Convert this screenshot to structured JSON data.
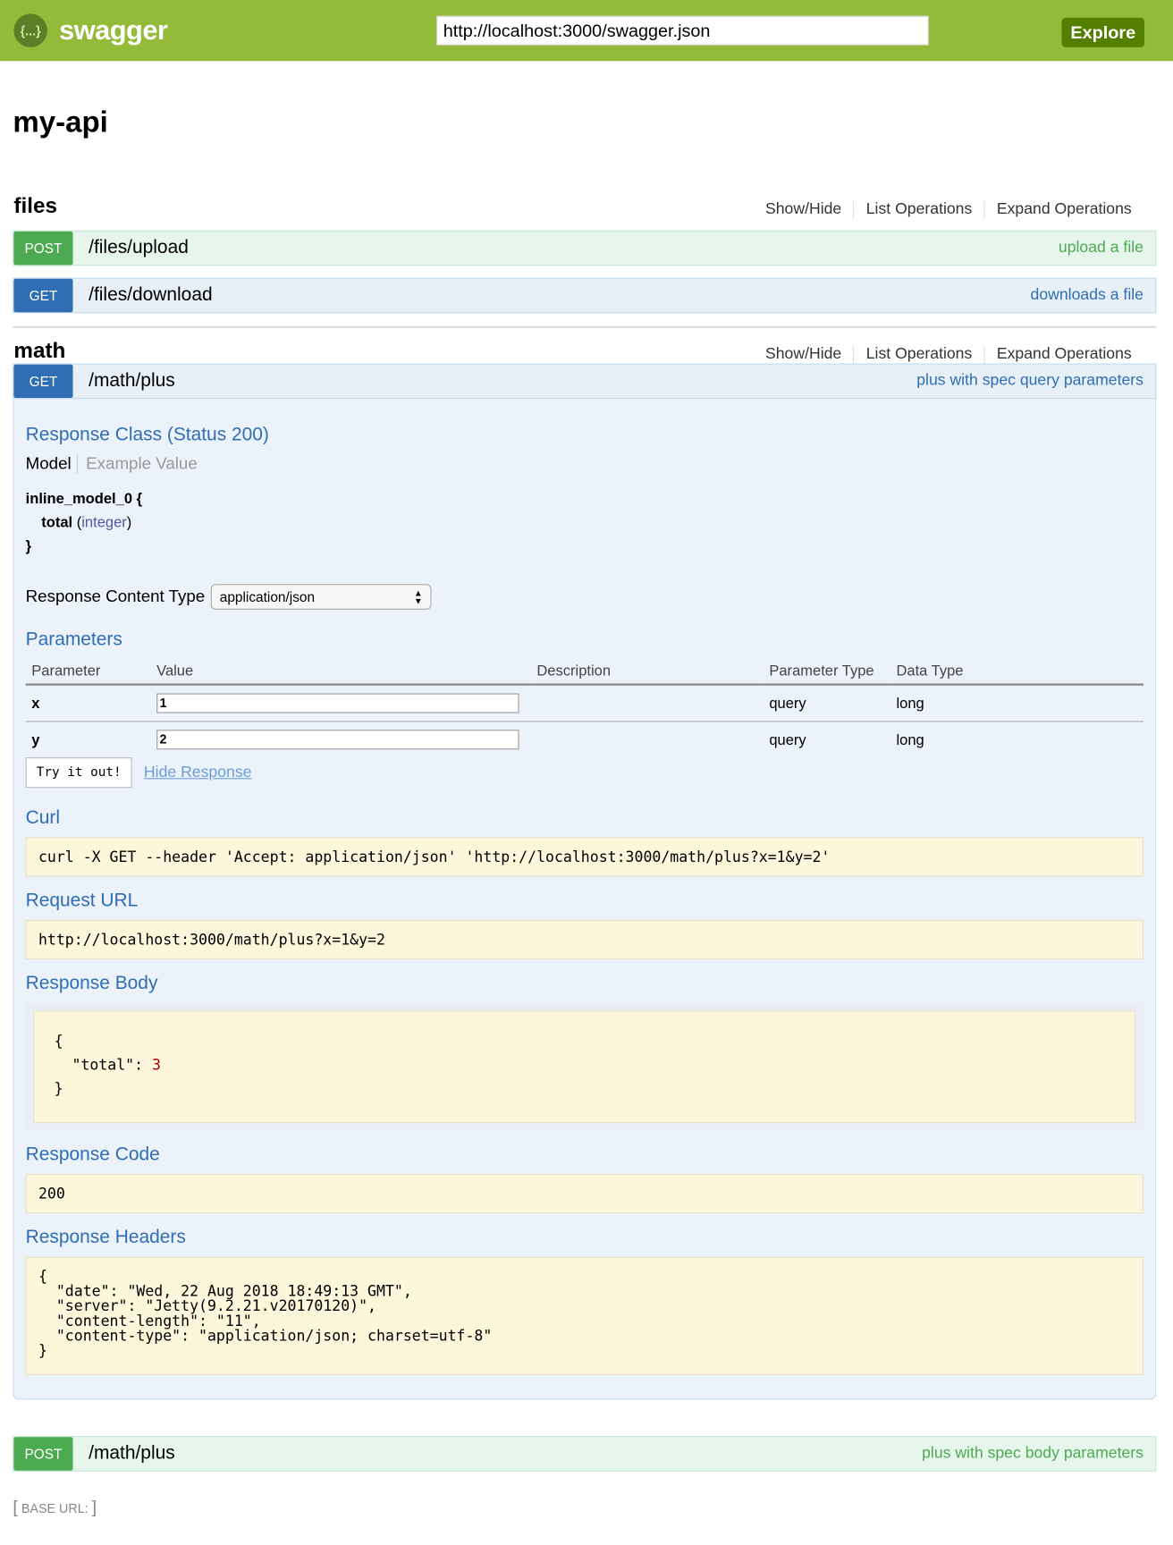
{
  "header": {
    "logo_text": "swagger",
    "logo_icon": "{...}",
    "url": "http://localhost:3000/swagger.json",
    "explore": "Explore"
  },
  "api_title": "my-api",
  "resources": [
    {
      "name": "files",
      "ops": [
        "Show/Hide",
        "List Operations",
        "Expand Operations"
      ],
      "operations": [
        {
          "method": "POST",
          "path": "/files/upload",
          "summary": "upload a file"
        },
        {
          "method": "GET",
          "path": "/files/download",
          "summary": "downloads a file"
        }
      ]
    },
    {
      "name": "math",
      "ops": [
        "Show/Hide",
        "List Operations",
        "Expand Operations"
      ],
      "operations": [
        {
          "method": "GET",
          "path": "/math/plus",
          "summary": "plus with spec query parameters"
        },
        {
          "method": "POST",
          "path": "/math/plus",
          "summary": "plus with spec body parameters"
        }
      ]
    }
  ],
  "expanded": {
    "response_class": "Response Class (Status 200)",
    "tabs": [
      "Model",
      "Example Value"
    ],
    "model": {
      "name": "inline_model_0 {",
      "prop": "total",
      "type": "integer",
      "close": "}"
    },
    "content_type_label": "Response Content Type",
    "content_type": "application/json",
    "parameters_title": "Parameters",
    "columns": [
      "Parameter",
      "Value",
      "Description",
      "Parameter Type",
      "Data Type"
    ],
    "params": [
      {
        "name": "x",
        "value": "1",
        "description": "",
        "ptype": "query",
        "dtype": "long"
      },
      {
        "name": "y",
        "value": "2",
        "description": "",
        "ptype": "query",
        "dtype": "long"
      }
    ],
    "try_button": "Try it out!",
    "hide_response": "Hide Response",
    "curl_title": "Curl",
    "curl": "curl -X GET --header 'Accept: application/json' 'http://localhost:3000/math/plus?x=1&y=2'",
    "request_url_title": "Request URL",
    "request_url": "http://localhost:3000/math/plus?x=1&y=2",
    "response_body_title": "Response Body",
    "response_body": {
      "open": "{",
      "key": "  \"total\": ",
      "value": "3",
      "close": "}"
    },
    "response_code_title": "Response Code",
    "response_code": "200",
    "response_headers_title": "Response Headers",
    "response_headers": "{\n  \"date\": \"Wed, 22 Aug 2018 18:49:13 GMT\",\n  \"server\": \"Jetty(9.2.21.v20170120)\",\n  \"content-length\": \"11\",\n  \"content-type\": \"application/json; charset=utf-8\"\n}"
  },
  "base_url": {
    "open": "[",
    "label": "BASE URL:",
    "close": "]"
  }
}
